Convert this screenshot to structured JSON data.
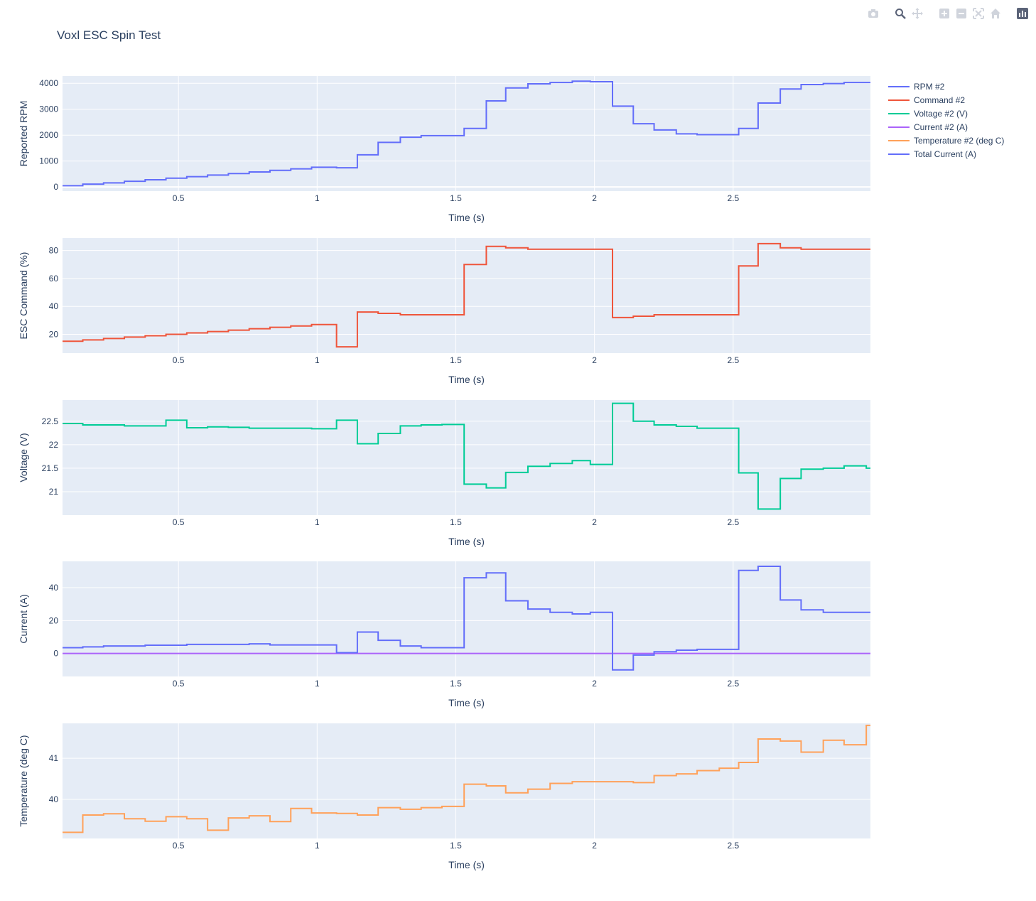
{
  "title": "Voxl ESC Spin Test",
  "modebar": [
    {
      "name": "camera-icon"
    },
    {
      "name": "zoom-icon"
    },
    {
      "name": "pan-icon"
    },
    {
      "name": "zoom-in-icon"
    },
    {
      "name": "zoom-out-icon"
    },
    {
      "name": "autoscale-icon"
    },
    {
      "name": "reset-axes-icon"
    },
    {
      "name": "plotly-logo-icon"
    }
  ],
  "legend": [
    {
      "label": "RPM #2",
      "color": "#636efa"
    },
    {
      "label": "Command #2",
      "color": "#ef553b"
    },
    {
      "label": "Voltage #2 (V)",
      "color": "#00cc96"
    },
    {
      "label": "Current #2 (A)",
      "color": "#ab63fa"
    },
    {
      "label": "Temperature #2 (deg C)",
      "color": "#ffa15a"
    },
    {
      "label": "Total Current (A)",
      "color": "#636efa"
    }
  ],
  "chart_data": [
    {
      "type": "line",
      "xlabel": "Time (s)",
      "ylabel": "Reported RPM",
      "xlim": [
        0.082,
        2.995
      ],
      "ylim": [
        -160,
        4280
      ],
      "xticks": [
        0.5,
        1,
        1.5,
        2,
        2.5
      ],
      "xticklabels": [
        "0.5",
        "1",
        "1.5",
        "2",
        "2.5"
      ],
      "yticks": [
        0,
        1000,
        2000,
        3000,
        4000
      ],
      "yticklabels": [
        "0",
        "1000",
        "2000",
        "3000",
        "4000"
      ],
      "series": [
        {
          "name": "RPM #2",
          "color": "#636efa",
          "shape": "hv",
          "x": [
            0.082,
            0.155,
            0.23,
            0.305,
            0.38,
            0.455,
            0.53,
            0.605,
            0.68,
            0.755,
            0.83,
            0.905,
            0.98,
            1.07,
            1.145,
            1.22,
            1.3,
            1.375,
            1.53,
            1.61,
            1.68,
            1.76,
            1.84,
            1.92,
            1.985,
            2.065,
            2.14,
            2.215,
            2.295,
            2.37,
            2.52,
            2.59,
            2.67,
            2.745,
            2.825,
            2.9,
            2.995
          ],
          "y": [
            50,
            110,
            160,
            220,
            280,
            340,
            400,
            460,
            520,
            580,
            640,
            700,
            760,
            740,
            1240,
            1720,
            1920,
            1980,
            2260,
            3320,
            3820,
            3980,
            4030,
            4080,
            4060,
            3120,
            2440,
            2200,
            2050,
            2020,
            2260,
            3240,
            3780,
            3950,
            3990,
            4030,
            4040
          ]
        }
      ]
    },
    {
      "type": "line",
      "xlabel": "Time (s)",
      "ylabel": "ESC Command (%)",
      "xlim": [
        0.082,
        2.995
      ],
      "ylim": [
        6.5,
        89
      ],
      "xticks": [
        0.5,
        1,
        1.5,
        2,
        2.5
      ],
      "xticklabels": [
        "0.5",
        "1",
        "1.5",
        "2",
        "2.5"
      ],
      "yticks": [
        20,
        40,
        60,
        80
      ],
      "yticklabels": [
        "20",
        "40",
        "60",
        "80"
      ],
      "series": [
        {
          "name": "Command #2",
          "color": "#ef553b",
          "shape": "hv",
          "x": [
            0.082,
            0.155,
            0.23,
            0.305,
            0.38,
            0.455,
            0.53,
            0.605,
            0.68,
            0.755,
            0.83,
            0.905,
            0.98,
            1.07,
            1.145,
            1.22,
            1.3,
            1.53,
            1.61,
            1.68,
            1.76,
            2.065,
            2.14,
            2.215,
            2.52,
            2.59,
            2.67,
            2.745,
            2.995
          ],
          "y": [
            15,
            16,
            17,
            18,
            19,
            20,
            21,
            22,
            23,
            24,
            25,
            26,
            27,
            11,
            36,
            35,
            34,
            70,
            83,
            82,
            81,
            32,
            33,
            34,
            69,
            85,
            82,
            81,
            81
          ]
        }
      ]
    },
    {
      "type": "line",
      "xlabel": "Time (s)",
      "ylabel": "Voltage (V)",
      "xlim": [
        0.082,
        2.995
      ],
      "ylim": [
        20.5,
        22.95
      ],
      "xticks": [
        0.5,
        1,
        1.5,
        2,
        2.5
      ],
      "xticklabels": [
        "0.5",
        "1",
        "1.5",
        "2",
        "2.5"
      ],
      "yticks": [
        21,
        21.5,
        22,
        22.5
      ],
      "yticklabels": [
        "21",
        "21.5",
        "22",
        "22.5"
      ],
      "series": [
        {
          "name": "Voltage #2 (V)",
          "color": "#00cc96",
          "shape": "hv",
          "x": [
            0.082,
            0.155,
            0.305,
            0.455,
            0.53,
            0.605,
            0.68,
            0.755,
            0.98,
            1.07,
            1.145,
            1.22,
            1.3,
            1.375,
            1.45,
            1.53,
            1.61,
            1.68,
            1.76,
            1.84,
            1.92,
            1.985,
            2.065,
            2.14,
            2.215,
            2.295,
            2.37,
            2.52,
            2.59,
            2.67,
            2.745,
            2.825,
            2.9,
            2.98,
            2.995
          ],
          "y": [
            22.45,
            22.42,
            22.4,
            22.52,
            22.36,
            22.38,
            22.37,
            22.35,
            22.34,
            22.52,
            22.02,
            22.24,
            22.4,
            22.42,
            22.43,
            21.16,
            21.08,
            21.41,
            21.54,
            21.6,
            21.66,
            21.58,
            22.88,
            22.5,
            22.42,
            22.39,
            22.35,
            21.4,
            20.63,
            21.28,
            21.48,
            21.5,
            21.55,
            21.5,
            21.5
          ]
        }
      ]
    },
    {
      "type": "line",
      "xlabel": "Time (s)",
      "ylabel": "Current (A)",
      "xlim": [
        0.082,
        2.995
      ],
      "ylim": [
        -14,
        56
      ],
      "xticks": [
        0.5,
        1,
        1.5,
        2,
        2.5
      ],
      "xticklabels": [
        "0.5",
        "1",
        "1.5",
        "2",
        "2.5"
      ],
      "yticks": [
        0,
        20,
        40
      ],
      "yticklabels": [
        "0",
        "20",
        "40"
      ],
      "series": [
        {
          "name": "Current #2 (A)",
          "color": "#ab63fa",
          "shape": "hv",
          "x": [
            0.082,
            2.995
          ],
          "y": [
            0,
            0
          ]
        },
        {
          "name": "Total Current (A)",
          "color": "#636efa",
          "shape": "hv",
          "x": [
            0.082,
            0.155,
            0.23,
            0.38,
            0.53,
            0.755,
            0.83,
            1.07,
            1.145,
            1.22,
            1.3,
            1.375,
            1.53,
            1.61,
            1.68,
            1.76,
            1.84,
            1.92,
            1.985,
            2.065,
            2.14,
            2.215,
            2.295,
            2.37,
            2.52,
            2.59,
            2.67,
            2.745,
            2.825,
            2.995
          ],
          "y": [
            3.5,
            4,
            4.5,
            5,
            5.5,
            5.8,
            5.2,
            0.5,
            13,
            8,
            4.5,
            3.5,
            46,
            49,
            32,
            27,
            25,
            24,
            25,
            -10,
            -1,
            1,
            2,
            2.5,
            50.5,
            53,
            32.5,
            26.5,
            25,
            25
          ]
        }
      ]
    },
    {
      "type": "line",
      "xlabel": "Time (s)",
      "ylabel": "Temperature (deg C)",
      "xlim": [
        0.082,
        2.995
      ],
      "ylim": [
        39.05,
        41.85
      ],
      "xticks": [
        0.5,
        1,
        1.5,
        2,
        2.5
      ],
      "xticklabels": [
        "0.5",
        "1",
        "1.5",
        "2",
        "2.5"
      ],
      "yticks": [
        40,
        41
      ],
      "yticklabels": [
        "40",
        "41"
      ],
      "series": [
        {
          "name": "Temperature #2 (deg C)",
          "color": "#ffa15a",
          "shape": "hv",
          "x": [
            0.082,
            0.155,
            0.23,
            0.305,
            0.38,
            0.455,
            0.53,
            0.605,
            0.68,
            0.755,
            0.83,
            0.905,
            0.98,
            1.07,
            1.145,
            1.22,
            1.3,
            1.375,
            1.45,
            1.53,
            1.61,
            1.68,
            1.76,
            1.84,
            1.92,
            2.14,
            2.215,
            2.295,
            2.37,
            2.45,
            2.52,
            2.59,
            2.67,
            2.745,
            2.825,
            2.9,
            2.98,
            2.995
          ],
          "y": [
            39.2,
            39.62,
            39.65,
            39.53,
            39.47,
            39.58,
            39.53,
            39.25,
            39.55,
            39.6,
            39.46,
            39.78,
            39.67,
            39.66,
            39.62,
            39.8,
            39.76,
            39.8,
            39.83,
            40.37,
            40.33,
            40.16,
            40.25,
            40.39,
            40.43,
            40.41,
            40.58,
            40.62,
            40.7,
            40.76,
            40.9,
            41.47,
            41.42,
            41.15,
            41.44,
            41.33,
            41.8,
            41.8
          ]
        }
      ]
    }
  ]
}
